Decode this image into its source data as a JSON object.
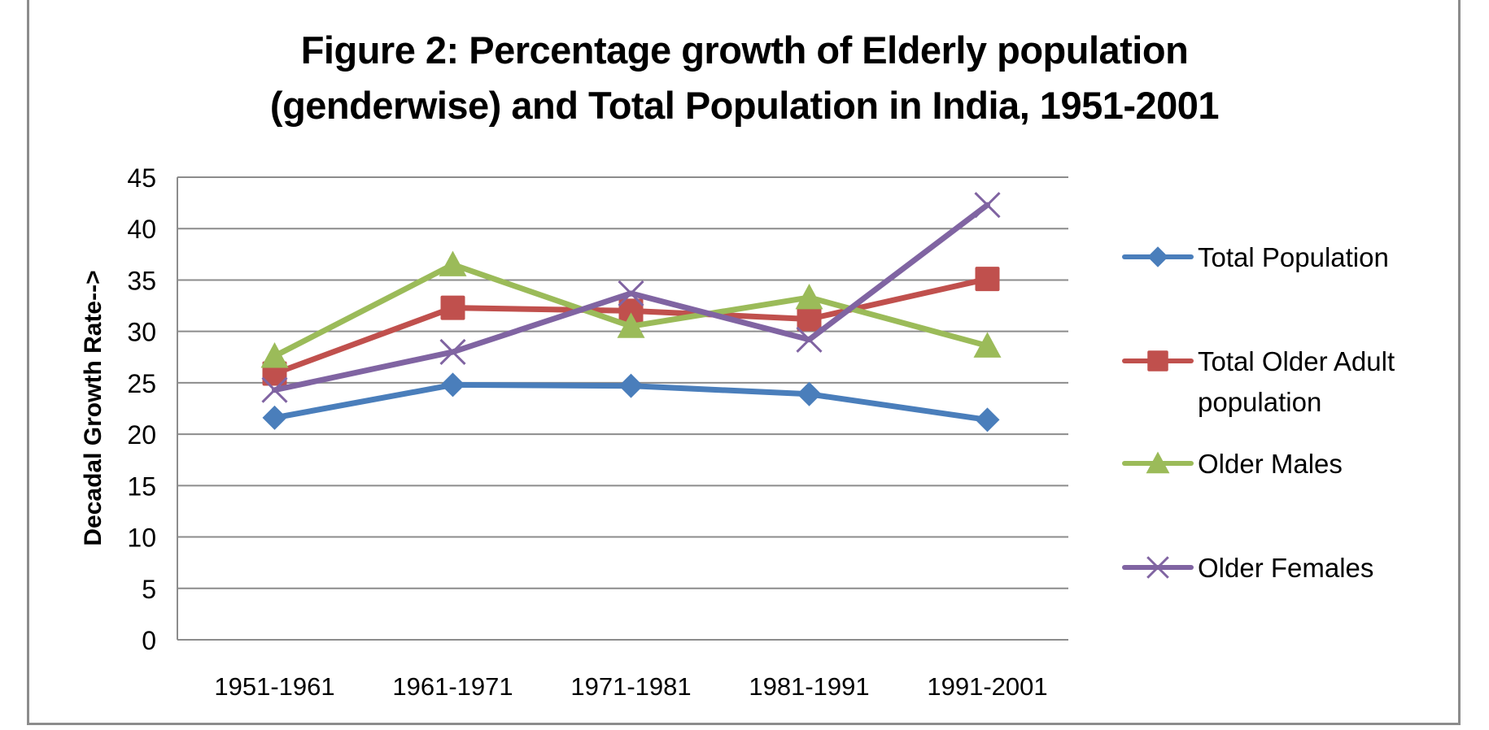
{
  "chart_data": {
    "type": "line",
    "title": "Figure 2: Percentage growth of Elderly population (genderwise) and Total Population in India, 1951-2001",
    "title_lines": [
      "Figure 2: Percentage growth of Elderly population",
      "(genderwise) and Total Population in India, 1951-2001"
    ],
    "xlabel": "",
    "ylabel": "Decadal Growth Rate-->",
    "categories": [
      "1951-1961",
      "1961-1971",
      "1971-1981",
      "1981-1991",
      "1991-2001"
    ],
    "ylim": [
      0,
      45
    ],
    "yticks": [
      0,
      5,
      10,
      15,
      20,
      25,
      30,
      35,
      40,
      45
    ],
    "grid": true,
    "legend_position": "right",
    "series": [
      {
        "name": "Total Population",
        "color": "#4a7ebb",
        "marker": "diamond",
        "values": [
          21.6,
          24.8,
          24.7,
          23.9,
          21.4
        ]
      },
      {
        "name": "Total Older Adult population",
        "color": "#c0504d",
        "marker": "square",
        "values": [
          25.9,
          32.3,
          32.0,
          31.2,
          35.1
        ]
      },
      {
        "name": "Older Males",
        "color": "#9bbb59",
        "marker": "triangle",
        "values": [
          27.6,
          36.5,
          30.5,
          33.3,
          28.6
        ]
      },
      {
        "name": "Older Females",
        "color": "#8064a2",
        "marker": "x",
        "values": [
          24.3,
          28.0,
          33.7,
          29.2,
          42.3
        ]
      }
    ]
  }
}
